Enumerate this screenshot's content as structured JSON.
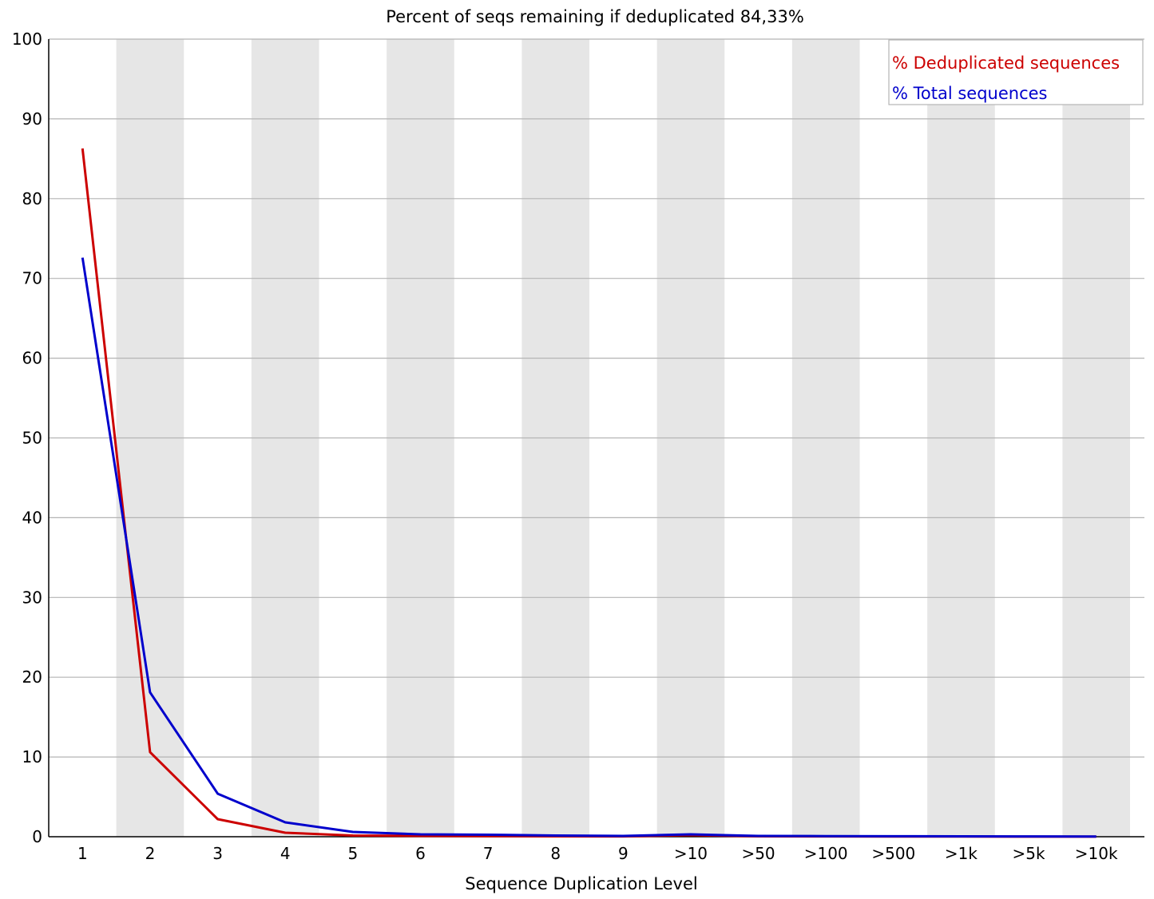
{
  "chart_data": {
    "type": "line",
    "title": "Percent of seqs remaining if deduplicated 84,33%",
    "xlabel": "Sequence Duplication Level",
    "ylabel": "",
    "categories": [
      "1",
      "2",
      "3",
      "4",
      "5",
      "6",
      "7",
      "8",
      "9",
      ">10",
      ">50",
      ">100",
      ">500",
      ">1k",
      ">5k",
      ">10k"
    ],
    "ylim": [
      0,
      100
    ],
    "yticks": [
      0,
      10,
      20,
      30,
      40,
      50,
      60,
      70,
      80,
      90,
      100
    ],
    "grid": true,
    "legend_position": "top-right",
    "series": [
      {
        "name": "% Deduplicated sequences",
        "color": "#cc0000",
        "values": [
          86.3,
          10.6,
          2.2,
          0.5,
          0.15,
          0.1,
          0.08,
          0.05,
          0.04,
          0.2,
          0.05,
          0.04,
          0.03,
          0.02,
          0.01,
          0.01
        ]
      },
      {
        "name": "% Total sequences",
        "color": "#0000cc",
        "values": [
          72.6,
          18.1,
          5.4,
          1.8,
          0.6,
          0.3,
          0.25,
          0.15,
          0.1,
          0.3,
          0.1,
          0.08,
          0.06,
          0.05,
          0.04,
          0.03
        ]
      }
    ]
  }
}
